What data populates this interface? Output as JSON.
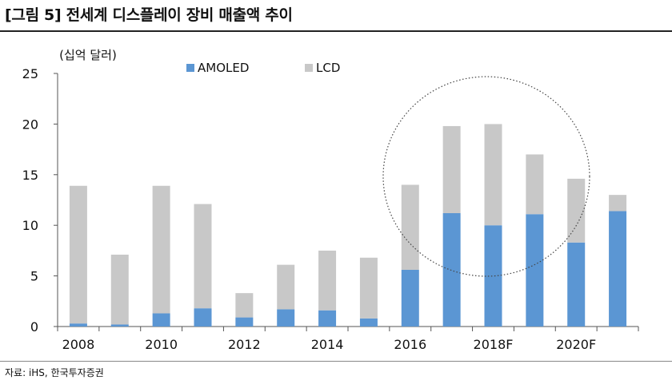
{
  "title": "[그림 5] 전세계 디스플레이 장비 매출액 추이",
  "source": "자료: iHS, 한국투자증권",
  "chart_data": {
    "type": "bar",
    "stacked": true,
    "unit_label": "(십억 달러)",
    "categories": [
      "2008",
      "2009",
      "2010",
      "2011",
      "2012",
      "2013",
      "2014",
      "2015",
      "2016",
      "2017",
      "2018F",
      "2019F",
      "2020F",
      "2021F"
    ],
    "x_tick_labels": [
      "2008",
      "",
      "2010",
      "",
      "2012",
      "",
      "2014",
      "",
      "2016",
      "",
      "2018F",
      "",
      "2020F",
      ""
    ],
    "series": [
      {
        "name": "AMOLED",
        "color": "#5b96d3",
        "values": [
          0.3,
          0.2,
          1.3,
          1.8,
          0.9,
          1.7,
          1.6,
          0.8,
          5.6,
          11.2,
          10.0,
          11.1,
          8.3,
          11.4
        ]
      },
      {
        "name": "LCD",
        "color": "#c8c8c8",
        "values": [
          13.6,
          6.9,
          12.6,
          10.3,
          2.4,
          4.4,
          5.9,
          6.0,
          8.4,
          8.6,
          10.0,
          5.9,
          6.3,
          1.6
        ]
      }
    ],
    "ylim": [
      0,
      25
    ],
    "y_ticks": [
      0,
      5,
      10,
      15,
      20,
      25
    ],
    "legend_position": "top-center",
    "grid": false,
    "annotation": "dotted circle highlighting 2016–2020F"
  }
}
